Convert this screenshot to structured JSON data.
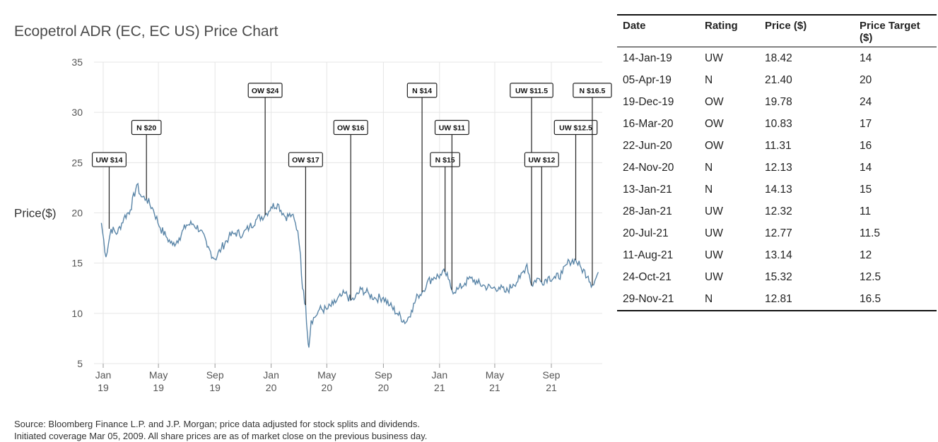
{
  "chart_data": {
    "type": "line",
    "title": "Ecopetrol ADR (EC, EC US) Price Chart",
    "ylabel": "Price($)",
    "xlabel": "",
    "ylim": [
      5,
      35
    ],
    "yticks": [
      5,
      10,
      15,
      20,
      25,
      30,
      35
    ],
    "xticks": [
      {
        "date": "2019-01-01",
        "line1": "Jan",
        "line2": "19"
      },
      {
        "date": "2019-05-01",
        "line1": "May",
        "line2": "19"
      },
      {
        "date": "2019-09-01",
        "line1": "Sep",
        "line2": "19"
      },
      {
        "date": "2020-01-01",
        "line1": "Jan",
        "line2": "20"
      },
      {
        "date": "2020-05-01",
        "line1": "May",
        "line2": "20"
      },
      {
        "date": "2020-09-01",
        "line1": "Sep",
        "line2": "20"
      },
      {
        "date": "2021-01-01",
        "line1": "Jan",
        "line2": "21"
      },
      {
        "date": "2021-05-01",
        "line1": "May",
        "line2": "21"
      },
      {
        "date": "2021-09-01",
        "line1": "Sep",
        "line2": "21"
      }
    ],
    "grid": true,
    "line_color": "#5b86a8",
    "series": [
      {
        "points": [
          [
            "2018-12-28",
            19.0
          ],
          [
            "2019-01-07",
            15.6
          ],
          [
            "2019-01-18",
            18.4
          ],
          [
            "2019-02-01",
            18.0
          ],
          [
            "2019-02-15",
            19.5
          ],
          [
            "2019-03-01",
            20.3
          ],
          [
            "2019-03-15",
            22.8
          ],
          [
            "2019-03-25",
            21.6
          ],
          [
            "2019-04-05",
            21.4
          ],
          [
            "2019-04-20",
            20.3
          ],
          [
            "2019-05-05",
            18.5
          ],
          [
            "2019-05-20",
            17.5
          ],
          [
            "2019-06-01",
            16.8
          ],
          [
            "2019-06-15",
            17.5
          ],
          [
            "2019-07-01",
            18.8
          ],
          [
            "2019-07-15",
            18.9
          ],
          [
            "2019-08-01",
            18.3
          ],
          [
            "2019-08-15",
            16.6
          ],
          [
            "2019-09-01",
            15.4
          ],
          [
            "2019-09-15",
            16.5
          ],
          [
            "2019-10-01",
            17.6
          ],
          [
            "2019-10-15",
            18.0
          ],
          [
            "2019-11-01",
            17.9
          ],
          [
            "2019-11-15",
            18.6
          ],
          [
            "2019-12-01",
            19.4
          ],
          [
            "2019-12-19",
            19.8
          ],
          [
            "2020-01-01",
            20.6
          ],
          [
            "2020-01-15",
            20.9
          ],
          [
            "2020-02-01",
            19.6
          ],
          [
            "2020-02-15",
            19.8
          ],
          [
            "2020-02-28",
            18.2
          ],
          [
            "2020-03-05",
            15.8
          ],
          [
            "2020-03-09",
            12.5
          ],
          [
            "2020-03-16",
            10.8
          ],
          [
            "2020-03-20",
            7.9
          ],
          [
            "2020-03-23",
            6.6
          ],
          [
            "2020-03-28",
            9.3
          ],
          [
            "2020-04-05",
            9.6
          ],
          [
            "2020-04-15",
            10.4
          ],
          [
            "2020-05-01",
            10.4
          ],
          [
            "2020-05-15",
            10.9
          ],
          [
            "2020-06-01",
            11.7
          ],
          [
            "2020-06-10",
            12.0
          ],
          [
            "2020-06-22",
            11.3
          ],
          [
            "2020-07-01",
            11.5
          ],
          [
            "2020-07-15",
            12.4
          ],
          [
            "2020-08-01",
            11.9
          ],
          [
            "2020-08-15",
            11.5
          ],
          [
            "2020-09-01",
            11.6
          ],
          [
            "2020-09-15",
            10.8
          ],
          [
            "2020-10-01",
            10.0
          ],
          [
            "2020-10-20",
            9.1
          ],
          [
            "2020-11-01",
            10.3
          ],
          [
            "2020-11-15",
            11.8
          ],
          [
            "2020-11-24",
            12.1
          ],
          [
            "2020-12-05",
            13.1
          ],
          [
            "2020-12-20",
            13.6
          ],
          [
            "2021-01-05",
            13.8
          ],
          [
            "2021-01-13",
            14.1
          ],
          [
            "2021-01-20",
            13.4
          ],
          [
            "2021-01-28",
            12.3
          ],
          [
            "2021-02-10",
            12.4
          ],
          [
            "2021-02-25",
            13.0
          ],
          [
            "2021-03-10",
            13.5
          ],
          [
            "2021-03-25",
            13.0
          ],
          [
            "2021-04-10",
            12.7
          ],
          [
            "2021-04-25",
            12.5
          ],
          [
            "2021-05-10",
            12.6
          ],
          [
            "2021-05-25",
            12.1
          ],
          [
            "2021-06-10",
            12.9
          ],
          [
            "2021-06-25",
            13.5
          ],
          [
            "2021-07-10",
            14.9
          ],
          [
            "2021-07-20",
            12.8
          ],
          [
            "2021-08-01",
            13.5
          ],
          [
            "2021-08-11",
            13.1
          ],
          [
            "2021-08-25",
            13.6
          ],
          [
            "2021-09-10",
            13.5
          ],
          [
            "2021-09-25",
            14.0
          ],
          [
            "2021-10-10",
            15.2
          ],
          [
            "2021-10-24",
            15.3
          ],
          [
            "2021-11-05",
            14.5
          ],
          [
            "2021-11-20",
            13.7
          ],
          [
            "2021-11-29",
            12.8
          ],
          [
            "2021-12-05",
            13.3
          ],
          [
            "2021-12-12",
            14.1
          ]
        ]
      }
    ],
    "annotations": [
      {
        "label": "UW $14",
        "date": "2019-01-14",
        "price": 18.42,
        "box_level": 25.3
      },
      {
        "label": "N $20",
        "date": "2019-04-05",
        "price": 21.4,
        "box_level": 28.5
      },
      {
        "label": "OW $24",
        "date": "2019-12-19",
        "price": 19.78,
        "box_level": 32.2
      },
      {
        "label": "OW $17",
        "date": "2020-03-16",
        "price": 10.83,
        "box_level": 25.3
      },
      {
        "label": "OW $16",
        "date": "2020-06-22",
        "price": 11.31,
        "box_level": 28.5
      },
      {
        "label": "N $14",
        "date": "2020-11-24",
        "price": 12.13,
        "box_level": 32.2
      },
      {
        "label": "N $15",
        "date": "2021-01-13",
        "price": 14.13,
        "box_level": 25.3
      },
      {
        "label": "UW $11",
        "date": "2021-01-28",
        "price": 12.32,
        "box_level": 28.5
      },
      {
        "label": "UW $11.5",
        "date": "2021-07-20",
        "price": 12.77,
        "box_level": 32.2
      },
      {
        "label": "UW $12",
        "date": "2021-08-11",
        "price": 13.14,
        "box_level": 25.3
      },
      {
        "label": "UW $12.5",
        "date": "2021-10-24",
        "price": 15.32,
        "box_level": 28.5
      },
      {
        "label": "N $16.5",
        "date": "2021-11-29",
        "price": 12.81,
        "box_level": 32.2
      }
    ]
  },
  "table": {
    "headers": [
      "Date",
      "Rating",
      "Price ($)",
      "Price Target ($)"
    ],
    "rows": [
      [
        "14-Jan-19",
        "UW",
        "18.42",
        "14"
      ],
      [
        "05-Apr-19",
        "N",
        "21.40",
        "20"
      ],
      [
        "19-Dec-19",
        "OW",
        "19.78",
        "24"
      ],
      [
        "16-Mar-20",
        "OW",
        "10.83",
        "17"
      ],
      [
        "22-Jun-20",
        "OW",
        "11.31",
        "16"
      ],
      [
        "24-Nov-20",
        "N",
        "12.13",
        "14"
      ],
      [
        "13-Jan-21",
        "N",
        "14.13",
        "15"
      ],
      [
        "28-Jan-21",
        "UW",
        "12.32",
        "11"
      ],
      [
        "20-Jul-21",
        "UW",
        "12.77",
        "11.5"
      ],
      [
        "11-Aug-21",
        "UW",
        "13.14",
        "12"
      ],
      [
        "24-Oct-21",
        "UW",
        "15.32",
        "12.5"
      ],
      [
        "29-Nov-21",
        "N",
        "12.81",
        "16.5"
      ]
    ]
  },
  "footnote": {
    "line1": "Source: Bloomberg Finance L.P. and J.P. Morgan; price data adjusted for stock splits and dividends.",
    "line2": "Initiated coverage Mar 05, 2009. All share prices are as of market close on the previous business day."
  }
}
